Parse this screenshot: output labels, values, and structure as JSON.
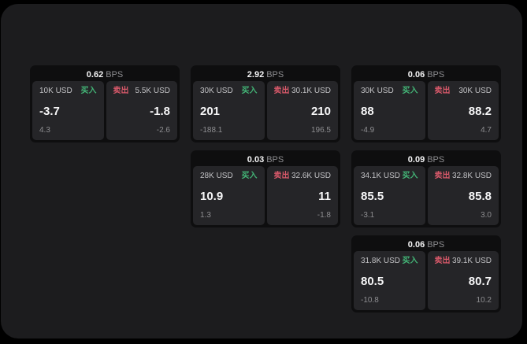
{
  "colors": {
    "buy_green": "#43b476",
    "sell_red": "#d8596a",
    "panel_bg": "#1c1c1e",
    "card_bg": "#0e0e0f",
    "subpanel_bg": "#252528"
  },
  "cards": [
    {
      "row": 1,
      "col": 1,
      "bps_value": "0.62",
      "bps_unit": "BPS",
      "buy": {
        "amount": "10K USD",
        "side_label": "买入",
        "price": "-3.7",
        "delta": "4.3"
      },
      "sell": {
        "side_label": "卖出",
        "amount": "5.5K USD",
        "price": "-1.8",
        "delta": "-2.6"
      }
    },
    {
      "row": 1,
      "col": 2,
      "bps_value": "2.92",
      "bps_unit": "BPS",
      "buy": {
        "amount": "30K USD",
        "side_label": "买入",
        "price": "201",
        "delta": "-188.1"
      },
      "sell": {
        "side_label": "卖出",
        "amount": "30.1K USD",
        "price": "210",
        "delta": "196.5"
      }
    },
    {
      "row": 1,
      "col": 3,
      "bps_value": "0.06",
      "bps_unit": "BPS",
      "buy": {
        "amount": "30K USD",
        "side_label": "买入",
        "price": "88",
        "delta": "-4.9"
      },
      "sell": {
        "side_label": "卖出",
        "amount": "30K USD",
        "price": "88.2",
        "delta": "4.7"
      }
    },
    {
      "row": 2,
      "col": 2,
      "bps_value": "0.03",
      "bps_unit": "BPS",
      "buy": {
        "amount": "28K USD",
        "side_label": "买入",
        "price": "10.9",
        "delta": "1.3"
      },
      "sell": {
        "side_label": "卖出",
        "amount": "32.6K USD",
        "price": "11",
        "delta": "-1.8"
      }
    },
    {
      "row": 2,
      "col": 3,
      "bps_value": "0.09",
      "bps_unit": "BPS",
      "buy": {
        "amount": "34.1K USD",
        "side_label": "买入",
        "price": "85.5",
        "delta": "-3.1"
      },
      "sell": {
        "side_label": "卖出",
        "amount": "32.8K USD",
        "price": "85.8",
        "delta": "3.0"
      }
    },
    {
      "row": 3,
      "col": 3,
      "bps_value": "0.06",
      "bps_unit": "BPS",
      "buy": {
        "amount": "31.8K USD",
        "side_label": "买入",
        "price": "80.5",
        "delta": "-10.8"
      },
      "sell": {
        "side_label": "卖出",
        "amount": "39.1K USD",
        "price": "80.7",
        "delta": "10.2"
      }
    }
  ]
}
